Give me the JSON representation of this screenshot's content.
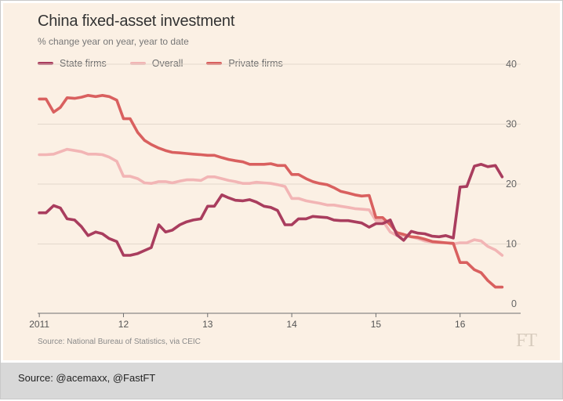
{
  "chart_data": {
    "type": "line",
    "title": "China fixed-asset investment",
    "subtitle": "% change year on year, year to date",
    "source": "Source: National Bureau of Statistics, via CEIC",
    "logo": "FT",
    "x_tick_labels": [
      "2011",
      "12",
      "13",
      "14",
      "15",
      "16"
    ],
    "x_tick_values": [
      2011,
      2012,
      2013,
      2014,
      2015,
      2016
    ],
    "xlim": [
      2010.98,
      2016.72
    ],
    "y_ticks": [
      0,
      10,
      20,
      30,
      40
    ],
    "ylim": [
      0,
      40
    ],
    "grid": true,
    "legend_position": "top-left",
    "series": [
      {
        "name": "State firms",
        "color": "#a93d5e",
        "x": [
          2011.0,
          2011.08,
          2011.17,
          2011.25,
          2011.33,
          2011.42,
          2011.5,
          2011.58,
          2011.67,
          2011.75,
          2011.83,
          2011.92,
          2012.0,
          2012.08,
          2012.17,
          2012.25,
          2012.33,
          2012.42,
          2012.5,
          2012.58,
          2012.67,
          2012.75,
          2012.83,
          2012.92,
          2013.0,
          2013.08,
          2013.17,
          2013.25,
          2013.33,
          2013.42,
          2013.5,
          2013.58,
          2013.67,
          2013.75,
          2013.83,
          2013.92,
          2014.0,
          2014.08,
          2014.17,
          2014.25,
          2014.33,
          2014.42,
          2014.5,
          2014.58,
          2014.67,
          2014.75,
          2014.83,
          2014.92,
          2015.0,
          2015.08,
          2015.17,
          2015.25,
          2015.33,
          2015.42,
          2015.5,
          2015.58,
          2015.67,
          2015.75,
          2015.83,
          2015.92,
          2016.0,
          2016.08,
          2016.17,
          2016.25,
          2016.33,
          2016.42,
          2016.5
        ],
        "values": [
          15.2,
          15.2,
          16.4,
          16.0,
          14.2,
          14.0,
          12.9,
          11.4,
          12.0,
          11.7,
          10.9,
          10.4,
          8.1,
          8.1,
          8.4,
          8.9,
          9.4,
          13.2,
          12.0,
          12.3,
          13.2,
          13.7,
          14.0,
          14.2,
          16.3,
          16.3,
          18.2,
          17.7,
          17.3,
          17.2,
          17.4,
          17.0,
          16.3,
          16.1,
          15.6,
          13.2,
          13.2,
          14.2,
          14.2,
          14.6,
          14.5,
          14.4,
          14.0,
          13.9,
          13.9,
          13.7,
          13.5,
          12.8,
          13.4,
          13.4,
          14.0,
          11.5,
          10.6,
          12.1,
          11.8,
          11.7,
          11.3,
          11.2,
          11.4,
          11.0,
          19.5,
          19.6,
          23.0,
          23.3,
          22.9,
          23.1,
          21.2
        ]
      },
      {
        "name": "Overall",
        "color": "#f2b5b5",
        "x": [
          2011.0,
          2011.08,
          2011.17,
          2011.25,
          2011.33,
          2011.42,
          2011.5,
          2011.58,
          2011.67,
          2011.75,
          2011.83,
          2011.92,
          2012.0,
          2012.08,
          2012.17,
          2012.25,
          2012.33,
          2012.42,
          2012.5,
          2012.58,
          2012.67,
          2012.75,
          2012.83,
          2012.92,
          2013.0,
          2013.08,
          2013.17,
          2013.25,
          2013.33,
          2013.42,
          2013.5,
          2013.58,
          2013.67,
          2013.75,
          2013.83,
          2013.92,
          2014.0,
          2014.08,
          2014.17,
          2014.25,
          2014.33,
          2014.42,
          2014.5,
          2014.58,
          2014.67,
          2014.75,
          2014.83,
          2014.92,
          2015.0,
          2015.08,
          2015.17,
          2015.25,
          2015.33,
          2015.42,
          2015.5,
          2015.58,
          2015.67,
          2015.75,
          2015.83,
          2015.92,
          2016.0,
          2016.08,
          2016.17,
          2016.25,
          2016.33,
          2016.42,
          2016.5
        ],
        "values": [
          24.9,
          24.9,
          25.0,
          25.4,
          25.8,
          25.6,
          25.4,
          25.0,
          25.0,
          24.9,
          24.5,
          23.8,
          21.3,
          21.3,
          20.9,
          20.2,
          20.1,
          20.4,
          20.4,
          20.2,
          20.5,
          20.7,
          20.7,
          20.6,
          21.2,
          21.2,
          20.9,
          20.6,
          20.4,
          20.1,
          20.1,
          20.3,
          20.2,
          20.1,
          19.9,
          19.6,
          17.6,
          17.6,
          17.2,
          17.0,
          16.8,
          16.5,
          16.5,
          16.3,
          16.1,
          15.9,
          15.8,
          15.7,
          13.9,
          13.9,
          12.0,
          11.4,
          11.4,
          11.2,
          10.9,
          10.5,
          10.3,
          10.2,
          10.2,
          10.0,
          10.2,
          10.2,
          10.7,
          10.5,
          9.6,
          9.0,
          8.1
        ]
      },
      {
        "name": "Private firms",
        "color": "#d9605f",
        "x": [
          2011.0,
          2011.08,
          2011.17,
          2011.25,
          2011.33,
          2011.42,
          2011.5,
          2011.58,
          2011.67,
          2011.75,
          2011.83,
          2011.92,
          2012.0,
          2012.08,
          2012.17,
          2012.25,
          2012.33,
          2012.42,
          2012.5,
          2012.58,
          2012.67,
          2012.75,
          2012.83,
          2012.92,
          2013.0,
          2013.08,
          2013.17,
          2013.25,
          2013.33,
          2013.42,
          2013.5,
          2013.58,
          2013.67,
          2013.75,
          2013.83,
          2013.92,
          2014.0,
          2014.08,
          2014.17,
          2014.25,
          2014.33,
          2014.42,
          2014.5,
          2014.58,
          2014.67,
          2014.75,
          2014.83,
          2014.92,
          2015.0,
          2015.08,
          2015.17,
          2015.25,
          2015.33,
          2015.42,
          2015.5,
          2015.58,
          2015.67,
          2015.75,
          2015.83,
          2015.92,
          2016.0,
          2016.08,
          2016.17,
          2016.25,
          2016.33,
          2016.42,
          2016.5
        ],
        "values": [
          34.2,
          34.2,
          32.0,
          32.8,
          34.4,
          34.3,
          34.5,
          34.8,
          34.6,
          34.8,
          34.6,
          34.0,
          30.9,
          30.9,
          28.6,
          27.3,
          26.6,
          26.0,
          25.6,
          25.3,
          25.2,
          25.1,
          25.0,
          24.9,
          24.8,
          24.8,
          24.4,
          24.1,
          23.9,
          23.7,
          23.3,
          23.3,
          23.3,
          23.4,
          23.1,
          23.1,
          21.6,
          21.6,
          20.9,
          20.4,
          20.1,
          19.9,
          19.4,
          18.8,
          18.5,
          18.2,
          18.0,
          18.1,
          14.4,
          14.4,
          13.2,
          11.9,
          11.6,
          11.2,
          11.1,
          10.8,
          10.4,
          10.3,
          10.2,
          10.1,
          6.9,
          6.9,
          5.7,
          5.2,
          3.9,
          2.8,
          2.8
        ]
      }
    ]
  },
  "footer": {
    "source_text": "Source: @acemaxx, @FastFT"
  }
}
